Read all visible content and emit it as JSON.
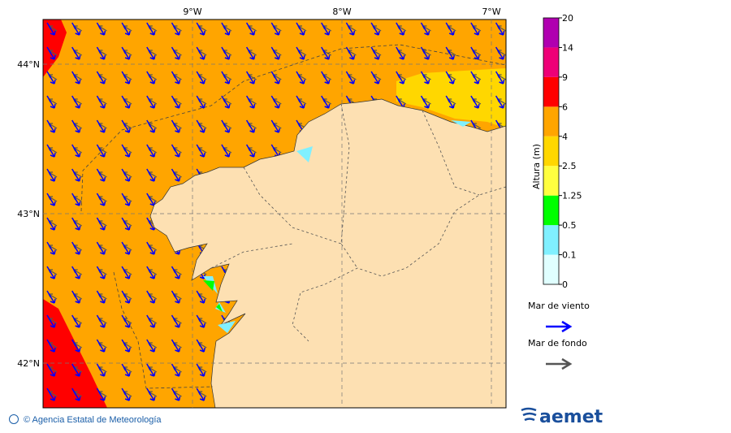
{
  "map": {
    "lon_labels": [
      "9°W",
      "8°W",
      "7°W"
    ],
    "lat_labels": [
      "44°N",
      "43°N",
      "42°N"
    ]
  },
  "colorbar": {
    "title": "Altura (m)",
    "ticks": [
      "0",
      "0.1",
      "0.5",
      "1.25",
      "2.5",
      "4",
      "6",
      "9",
      "14",
      "20"
    ],
    "colors": [
      "#e0ffff",
      "#80f0ff",
      "#00ff00",
      "#ffff40",
      "#ffd700",
      "#ffa500",
      "#ff0000",
      "#ee0077",
      "#b000b0"
    ]
  },
  "legend": {
    "items": [
      {
        "label": "Mar de viento",
        "color": "#0000ff"
      },
      {
        "label": "Mar de fondo",
        "color": "#555555"
      }
    ]
  },
  "footer": {
    "credit": "© Agencia Estatal de Meteorología",
    "logo": "aemet"
  }
}
